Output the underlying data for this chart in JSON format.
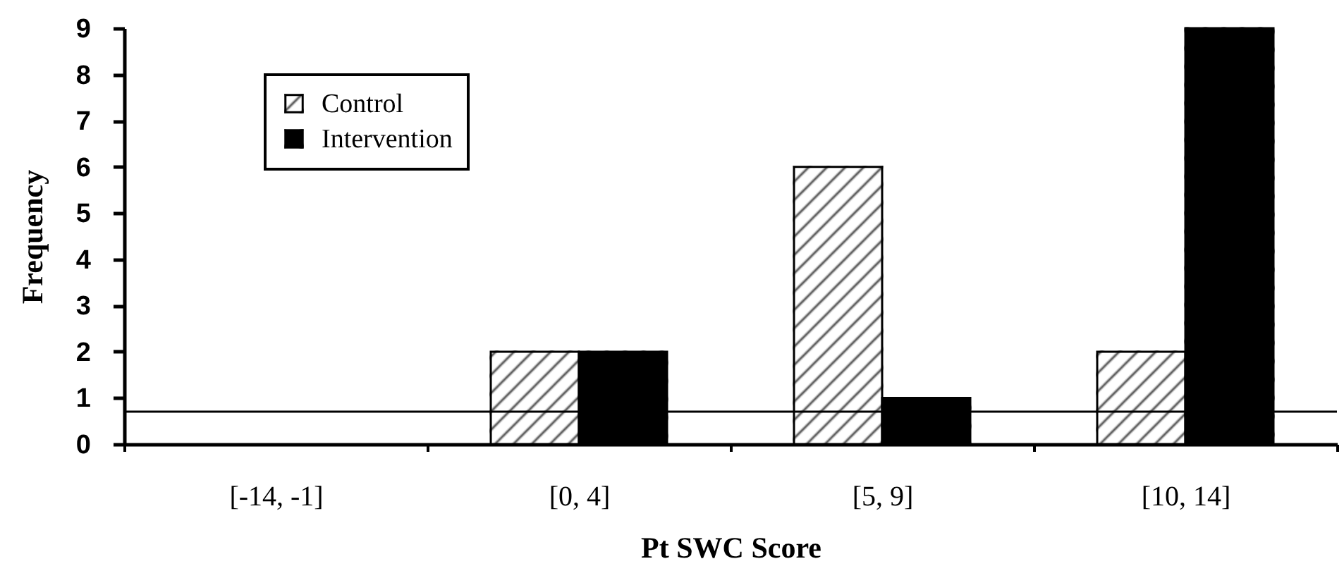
{
  "chart_data": {
    "type": "bar",
    "xlabel": "Pt SWC Score",
    "ylabel": "Frequency",
    "categories": [
      "[-14, -1]",
      "[0, 4]",
      "[5, 9]",
      "[10, 14]"
    ],
    "series": [
      {
        "name": "Control",
        "color": "#ffffff",
        "values": [
          0,
          2,
          6,
          2
        ]
      },
      {
        "name": "Intervention",
        "color": "#000000",
        "values": [
          0,
          2,
          1,
          9
        ]
      }
    ],
    "ylim": [
      0,
      9
    ],
    "yticks": [
      0,
      1,
      2,
      3,
      4,
      5,
      6,
      7,
      8,
      9
    ],
    "legend": "top left",
    "ref_lines": [
      {
        "axis": "y",
        "value": 0.7,
        "color": "#000000"
      }
    ]
  }
}
